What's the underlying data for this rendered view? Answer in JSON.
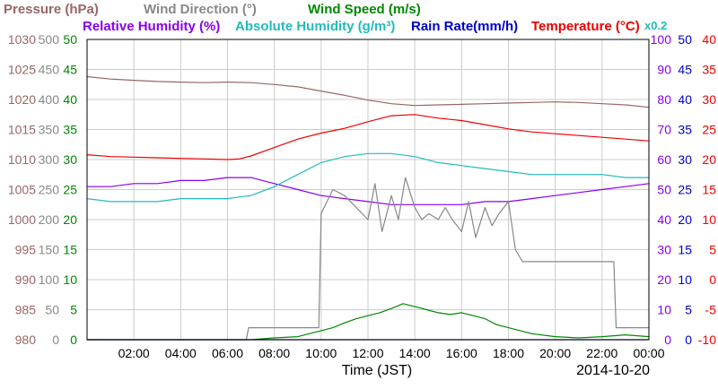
{
  "chart_data": {
    "type": "line",
    "date": "2014-10-20",
    "xlabel": "Time (JST)",
    "x_ticks": [
      "02:00",
      "04:00",
      "06:00",
      "08:00",
      "10:00",
      "12:00",
      "14:00",
      "16:00",
      "18:00",
      "20:00",
      "22:00",
      "00:00"
    ],
    "legend": [
      {
        "label": "Pressure (hPa)",
        "color": "#996666"
      },
      {
        "label": "Wind Direction (°)",
        "color": "#888888"
      },
      {
        "label": "Wind Speed (m/s)",
        "color": "#008800"
      },
      {
        "label": "Relative Humidity (%)",
        "color": "#8800ee"
      },
      {
        "label": "Absolute Humidity (g/m³)",
        "color": "#22bbbb"
      },
      {
        "label": "Rain Rate(mm/h)",
        "color": "#0000cc"
      },
      {
        "label": "Temperature (°C)",
        "color": "#ee0000"
      }
    ],
    "rain_scale_note": {
      "text": "x0.2",
      "color": "#22bbbb"
    },
    "axes": {
      "pressure": {
        "ticks": [
          "1030",
          "1025",
          "1020",
          "1015",
          "1010",
          "1005",
          "1000",
          "995",
          "990",
          "985",
          "980"
        ],
        "color": "#996666",
        "range": [
          980,
          1030
        ]
      },
      "wind_direction": {
        "ticks": [
          "500",
          "450",
          "400",
          "350",
          "300",
          "250",
          "200",
          "150",
          "100",
          "50",
          "0"
        ],
        "color": "#888888",
        "range": [
          0,
          500
        ]
      },
      "wind_speed": {
        "ticks": [
          "50",
          "45",
          "40",
          "35",
          "30",
          "25",
          "20",
          "15",
          "10",
          "5",
          "0"
        ],
        "color": "#008800",
        "range": [
          0,
          50
        ]
      },
      "relative_humidity": {
        "ticks": [
          "100",
          "90",
          "80",
          "70",
          "60",
          "50",
          "40",
          "30",
          "20",
          "10",
          "0"
        ],
        "color": "#8800ee",
        "range": [
          0,
          100
        ]
      },
      "rain_rate": {
        "ticks": [
          "50",
          "45",
          "40",
          "35",
          "30",
          "25",
          "20",
          "15",
          "10",
          "5",
          "0"
        ],
        "color": "#0000cc",
        "range": [
          0,
          50
        ]
      },
      "temperature": {
        "ticks": [
          "40",
          "35",
          "30",
          "25",
          "20",
          "15",
          "10",
          "5",
          "0",
          "-5",
          "-10"
        ],
        "color": "#ee0000",
        "range": [
          -10,
          40
        ]
      }
    },
    "x_range": [
      0,
      24
    ],
    "series": [
      {
        "name": "Pressure (hPa)",
        "color": "#996666",
        "axis": "pressure",
        "x": [
          0,
          1,
          2,
          3,
          4,
          5,
          6,
          7,
          8,
          9,
          10,
          11,
          12,
          13,
          14,
          15,
          16,
          17,
          18,
          19,
          20,
          21,
          22,
          23,
          24
        ],
        "values": [
          1023.8,
          1023.4,
          1023.2,
          1023.0,
          1022.9,
          1022.8,
          1022.9,
          1022.8,
          1022.5,
          1022.1,
          1021.4,
          1020.7,
          1019.9,
          1019.3,
          1019.0,
          1019.1,
          1019.2,
          1019.3,
          1019.4,
          1019.5,
          1019.6,
          1019.5,
          1019.3,
          1019.1,
          1018.7
        ]
      },
      {
        "name": "Temperature (°C)",
        "color": "#ee0000",
        "axis": "temperature",
        "x": [
          0,
          1,
          2,
          3,
          4,
          5,
          6,
          6.5,
          7,
          8,
          9,
          10,
          11,
          12,
          13,
          14,
          15,
          16,
          17,
          18,
          19,
          20,
          21,
          22,
          23,
          24
        ],
        "values": [
          20.8,
          20.5,
          20.4,
          20.3,
          20.2,
          20.1,
          20.0,
          20.1,
          20.6,
          22.0,
          23.4,
          24.4,
          25.2,
          26.3,
          27.3,
          27.5,
          26.9,
          26.5,
          25.8,
          25.1,
          24.6,
          24.3,
          24.0,
          23.7,
          23.4,
          23.1
        ]
      },
      {
        "name": "Relative Humidity (%)",
        "color": "#8800ee",
        "axis": "relative_humidity",
        "x": [
          0,
          1,
          2,
          3,
          4,
          5,
          6,
          7,
          8,
          9,
          10,
          11,
          12,
          13,
          14,
          15,
          16,
          17,
          18,
          19,
          20,
          21,
          22,
          23,
          24
        ],
        "values": [
          51,
          51,
          52,
          52,
          53,
          53,
          54,
          54,
          52,
          50,
          48,
          47,
          46,
          45,
          45,
          45,
          45,
          46,
          46,
          47,
          48,
          49,
          50,
          51,
          52
        ]
      },
      {
        "name": "Absolute Humidity (g/m³)",
        "color": "#22bbbb",
        "axis": "relative_humidity",
        "x": [
          0,
          1,
          2,
          3,
          4,
          5,
          6,
          7,
          8,
          9,
          10,
          11,
          12,
          13,
          14,
          15,
          16,
          17,
          18,
          19,
          20,
          21,
          22,
          23,
          24
        ],
        "values": [
          47,
          46,
          46,
          46,
          47,
          47,
          47,
          48,
          51,
          55,
          59,
          61,
          62,
          62,
          61,
          59,
          58,
          57,
          56,
          55,
          55,
          55,
          55,
          54,
          54
        ]
      },
      {
        "name": "Wind Direction (°)",
        "color": "#888888",
        "axis": "wind_direction",
        "x": [
          0,
          6.8,
          6.9,
          9.9,
          10.0,
          10.5,
          11.0,
          11.5,
          12.0,
          12.3,
          12.6,
          13.0,
          13.3,
          13.6,
          14.0,
          14.3,
          14.6,
          15.0,
          15.3,
          15.6,
          16.0,
          16.3,
          16.6,
          17.0,
          17.3,
          17.6,
          18.0,
          18.3,
          18.6,
          19,
          20,
          21,
          22,
          22.5,
          22.6,
          24
        ],
        "values": [
          0,
          0,
          20,
          20,
          210,
          250,
          240,
          220,
          200,
          260,
          180,
          240,
          200,
          270,
          220,
          200,
          210,
          200,
          220,
          200,
          180,
          230,
          170,
          220,
          190,
          210,
          230,
          150,
          130,
          130,
          130,
          130,
          130,
          130,
          20,
          20
        ]
      },
      {
        "name": "Wind Speed (m/s)",
        "color": "#008800",
        "axis": "wind_speed",
        "x": [
          0,
          2,
          4,
          5,
          6,
          7,
          8,
          9,
          10,
          10.5,
          11,
          11.5,
          12,
          12.5,
          13,
          13.5,
          14,
          14.5,
          15,
          15.5,
          16,
          16.5,
          17,
          17.5,
          18,
          18.5,
          19,
          20,
          21,
          22,
          23,
          24
        ],
        "values": [
          0,
          0,
          0,
          0,
          0,
          0,
          0.3,
          0.5,
          1.5,
          2.0,
          2.8,
          3.5,
          4.0,
          4.5,
          5.2,
          6.0,
          5.5,
          5.0,
          4.5,
          4.2,
          4.5,
          4.0,
          3.5,
          2.5,
          2.0,
          1.5,
          1.0,
          0.5,
          0.3,
          0.5,
          0.8,
          0.5
        ]
      },
      {
        "name": "Rain Rate(mm/h)",
        "color": "#0000cc",
        "axis": "rain_rate",
        "x": [
          0,
          24
        ],
        "values": [
          0,
          0
        ]
      }
    ]
  }
}
